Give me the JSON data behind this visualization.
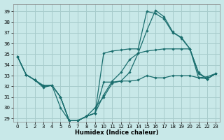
{
  "xlabel": "Humidex (Indice chaleur)",
  "bg_color": "#c8e8e8",
  "grid_color": "#a8cccc",
  "line_color": "#1a6e6e",
  "xlim": [
    -0.5,
    23.5
  ],
  "ylim": [
    28.7,
    39.7
  ],
  "yticks": [
    29,
    30,
    31,
    32,
    33,
    34,
    35,
    36,
    37,
    38,
    39
  ],
  "xticks": [
    0,
    1,
    2,
    3,
    4,
    5,
    6,
    7,
    8,
    9,
    10,
    11,
    12,
    13,
    14,
    15,
    16,
    17,
    18,
    19,
    20,
    21,
    22,
    23
  ],
  "lines": [
    {
      "x": [
        0,
        1,
        2,
        3,
        4,
        5,
        6,
        7,
        8,
        9,
        10,
        11,
        12,
        13,
        14,
        15,
        16,
        17,
        18,
        19,
        20,
        21,
        22,
        23
      ],
      "y": [
        34.8,
        33.1,
        32.6,
        31.9,
        32.1,
        30.0,
        28.8,
        28.8,
        29.2,
        30.0,
        31.0,
        32.3,
        32.5,
        33.3,
        35.1,
        35.3,
        35.4,
        35.5,
        35.5,
        35.5,
        35.5,
        32.8,
        32.7,
        33.2
      ]
    },
    {
      "x": [
        0,
        1,
        2,
        3,
        4,
        5,
        6,
        7,
        8,
        9,
        10,
        11,
        12,
        13,
        14,
        15,
        16,
        17,
        18,
        19,
        20,
        21,
        22,
        23
      ],
      "y": [
        34.8,
        33.1,
        32.6,
        32.0,
        32.1,
        31.0,
        28.8,
        28.8,
        29.2,
        29.5,
        32.4,
        32.4,
        32.5,
        32.5,
        32.6,
        33.0,
        32.8,
        32.8,
        33.0,
        33.0,
        33.0,
        32.8,
        32.9,
        33.2
      ]
    },
    {
      "x": [
        0,
        1,
        2,
        3,
        4,
        5,
        6,
        7,
        8,
        9,
        10,
        11,
        12,
        13,
        14,
        15,
        16,
        17,
        18,
        19,
        20,
        21,
        22,
        23
      ],
      "y": [
        34.8,
        33.1,
        32.6,
        32.0,
        32.1,
        31.0,
        28.8,
        28.8,
        29.2,
        29.5,
        31.2,
        32.5,
        33.3,
        34.5,
        35.1,
        37.2,
        39.1,
        38.5,
        37.1,
        36.5,
        35.5,
        33.3,
        32.7,
        33.2
      ]
    },
    {
      "x": [
        0,
        1,
        2,
        3,
        4,
        5,
        6,
        7,
        8,
        9,
        10,
        11,
        12,
        13,
        14,
        15,
        16,
        17,
        18,
        19,
        20,
        21,
        22,
        23
      ],
      "y": [
        34.8,
        33.1,
        32.6,
        32.1,
        32.1,
        31.0,
        28.8,
        28.8,
        29.2,
        29.5,
        35.1,
        35.3,
        35.4,
        35.5,
        35.5,
        39.0,
        38.8,
        38.3,
        37.0,
        36.6,
        35.5,
        33.2,
        32.7,
        33.2
      ]
    }
  ]
}
